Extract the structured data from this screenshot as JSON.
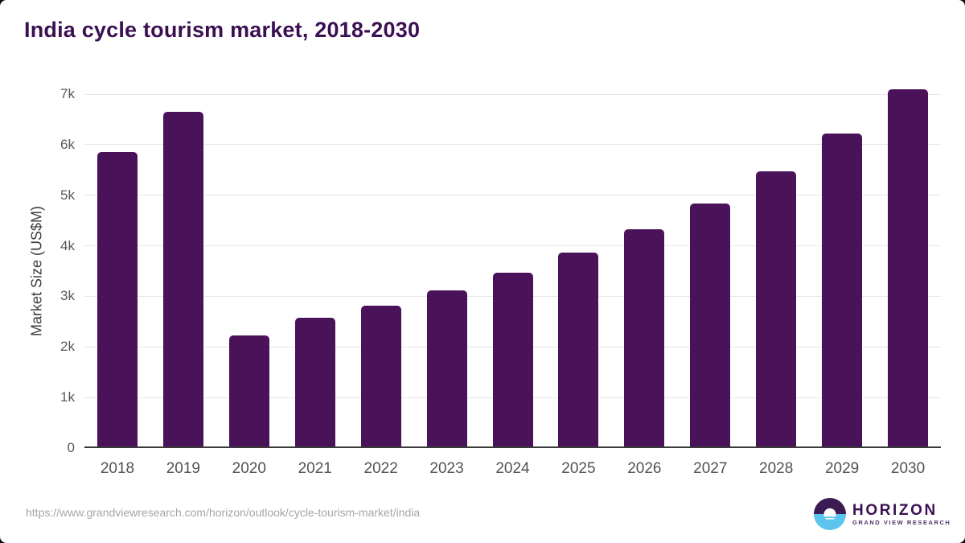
{
  "header": {
    "title": "India cycle tourism market, 2018-2030"
  },
  "footer": {
    "source_url": "https://www.grandviewresearch.com/horizon/outlook/cycle-tourism-market/india",
    "logo": {
      "name": "HORIZON",
      "subtitle": "GRAND VIEW RESEARCH",
      "icon": "sunset-over-water-icon"
    }
  },
  "colors": {
    "bar": "#4a1259",
    "title_text": "#3b1053",
    "grid_line": "#e7e7e7",
    "axis_line": "#3a3a3a",
    "y_tick_text": "#56595e",
    "x_tick_text": "#515151",
    "axis_title_text": "#3e3e3e",
    "url_text": "#a5a5a5",
    "logo_purple": "#3b1b51",
    "logo_blue": "#5ac4ef"
  },
  "chart_data": {
    "type": "bar",
    "title": "India cycle tourism market, 2018-2030",
    "categories": [
      "2018",
      "2019",
      "2020",
      "2021",
      "2022",
      "2023",
      "2024",
      "2025",
      "2026",
      "2027",
      "2028",
      "2029",
      "2030"
    ],
    "values": [
      5850,
      6650,
      2230,
      2580,
      2820,
      3120,
      3470,
      3870,
      4330,
      4840,
      5470,
      6220,
      7100
    ],
    "xlabel": "",
    "ylabel": "Market Size (US$M)",
    "ylim": [
      0,
      7000
    ],
    "ytick_values": [
      0,
      1000,
      2000,
      3000,
      4000,
      5000,
      6000,
      7000
    ],
    "ytick_labels": [
      "0",
      "1k",
      "2k",
      "3k",
      "4k",
      "5k",
      "6k",
      "7k"
    ],
    "grid": true,
    "legend": false,
    "bar_color": "#4a1259"
  }
}
